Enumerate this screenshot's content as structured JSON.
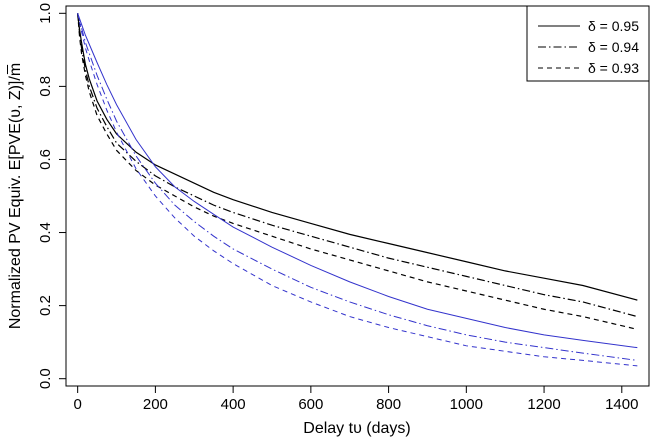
{
  "chart_data": {
    "type": "line",
    "title": "",
    "xlabel": "Delay tυ (days)",
    "ylabel": "Normalized PV Equiv. E[PVE(υ, Z)]/m̅",
    "xlim": [
      -30,
      1470
    ],
    "ylim": [
      -0.02,
      1.02
    ],
    "xticks": [
      0,
      200,
      400,
      600,
      800,
      1000,
      1200,
      1400
    ],
    "yticks": [
      0.0,
      0.2,
      0.4,
      0.6,
      0.8,
      1.0
    ],
    "grid": false,
    "legend_position": "top-right",
    "legend": [
      {
        "label": "δ = 0.95",
        "dash": "solid"
      },
      {
        "label": "δ = 0.94",
        "dash": "dashdot"
      },
      {
        "label": "δ = 0.93",
        "dash": "dashed"
      }
    ],
    "x": [
      0,
      5,
      10,
      20,
      30,
      50,
      75,
      100,
      150,
      200,
      250,
      300,
      350,
      400,
      500,
      600,
      700,
      800,
      900,
      1000,
      1100,
      1200,
      1300,
      1440
    ],
    "series": [
      {
        "color": "#000000",
        "dash": "solid",
        "values": [
          1.0,
          0.955,
          0.92,
          0.86,
          0.82,
          0.76,
          0.71,
          0.67,
          0.62,
          0.585,
          0.56,
          0.535,
          0.51,
          0.49,
          0.455,
          0.425,
          0.395,
          0.37,
          0.345,
          0.32,
          0.295,
          0.275,
          0.255,
          0.215
        ]
      },
      {
        "color": "#000000",
        "dash": "dashdot",
        "values": [
          1.0,
          0.945,
          0.905,
          0.845,
          0.8,
          0.74,
          0.69,
          0.645,
          0.595,
          0.555,
          0.525,
          0.5,
          0.475,
          0.455,
          0.42,
          0.39,
          0.36,
          0.33,
          0.305,
          0.28,
          0.255,
          0.23,
          0.21,
          0.17
        ]
      },
      {
        "color": "#000000",
        "dash": "dashed",
        "values": [
          1.0,
          0.935,
          0.89,
          0.83,
          0.785,
          0.72,
          0.67,
          0.625,
          0.57,
          0.53,
          0.5,
          0.47,
          0.445,
          0.425,
          0.39,
          0.355,
          0.325,
          0.295,
          0.265,
          0.24,
          0.215,
          0.19,
          0.17,
          0.135
        ]
      },
      {
        "color": "#3333cc",
        "dash": "solid",
        "values": [
          1.0,
          0.985,
          0.97,
          0.94,
          0.915,
          0.865,
          0.805,
          0.75,
          0.655,
          0.58,
          0.525,
          0.485,
          0.45,
          0.415,
          0.36,
          0.31,
          0.265,
          0.225,
          0.19,
          0.165,
          0.14,
          0.12,
          0.105,
          0.085
        ]
      },
      {
        "color": "#3333cc",
        "dash": "dashdot",
        "values": [
          1.0,
          0.98,
          0.96,
          0.92,
          0.89,
          0.83,
          0.765,
          0.705,
          0.61,
          0.535,
          0.475,
          0.43,
          0.39,
          0.355,
          0.3,
          0.25,
          0.21,
          0.175,
          0.145,
          0.12,
          0.1,
          0.085,
          0.07,
          0.05
        ]
      },
      {
        "color": "#3333cc",
        "dash": "dashed",
        "values": [
          1.0,
          0.975,
          0.95,
          0.905,
          0.87,
          0.805,
          0.735,
          0.675,
          0.575,
          0.5,
          0.44,
          0.39,
          0.35,
          0.315,
          0.255,
          0.21,
          0.17,
          0.14,
          0.115,
          0.09,
          0.075,
          0.06,
          0.05,
          0.035
        ]
      }
    ]
  }
}
